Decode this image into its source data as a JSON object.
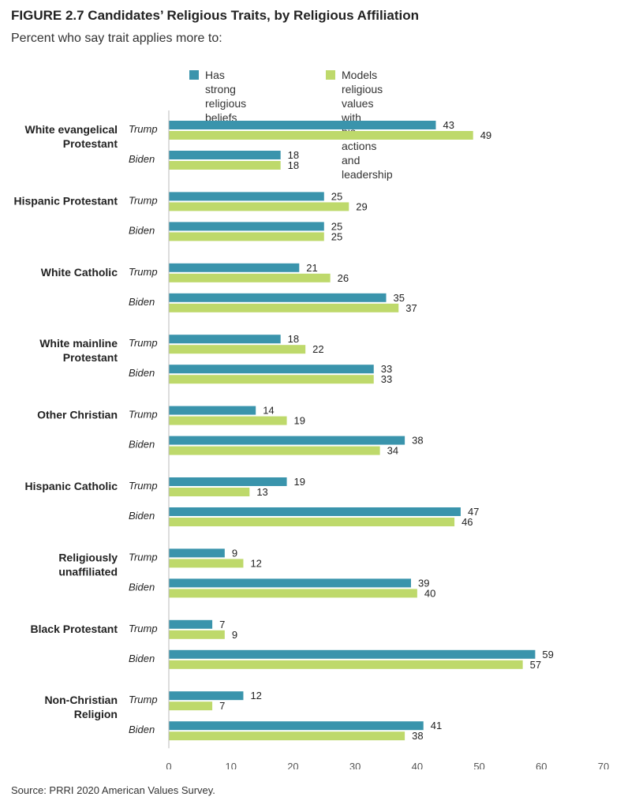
{
  "title": "FIGURE 2.7  Candidates’ Religious Traits, by Religious Affiliation",
  "subtitle": "Percent who say trait applies more to:",
  "source": "Source: PRRI 2020 American Values Survey.",
  "colors": {
    "series1": "#3a94ac",
    "series2": "#bed96b",
    "axis": "#bbbbbb",
    "text": "#222222",
    "tick": "#555555"
  },
  "chart_data": {
    "type": "bar",
    "orientation": "horizontal",
    "xlim": [
      0,
      70
    ],
    "ticks": [
      0,
      10,
      20,
      30,
      40,
      50,
      60,
      70
    ],
    "grid": false,
    "legend_position": "top",
    "series_names": [
      "Has strong\nreligious beliefs",
      "Models religious values with\nhis actions and leadership"
    ],
    "groups": [
      {
        "label": "White evangelical\nProtestant",
        "candidates": [
          {
            "name": "Trump",
            "values": [
              43,
              49
            ]
          },
          {
            "name": "Biden",
            "values": [
              18,
              18
            ]
          }
        ]
      },
      {
        "label": "Hispanic Protestant",
        "candidates": [
          {
            "name": "Trump",
            "values": [
              25,
              29
            ]
          },
          {
            "name": "Biden",
            "values": [
              25,
              25
            ]
          }
        ]
      },
      {
        "label": "White Catholic",
        "candidates": [
          {
            "name": "Trump",
            "values": [
              21,
              26
            ]
          },
          {
            "name": "Biden",
            "values": [
              35,
              37
            ]
          }
        ]
      },
      {
        "label": "White mainline\nProtestant",
        "candidates": [
          {
            "name": "Trump",
            "values": [
              18,
              22
            ]
          },
          {
            "name": "Biden",
            "values": [
              33,
              33
            ]
          }
        ]
      },
      {
        "label": "Other Christian",
        "candidates": [
          {
            "name": "Trump",
            "values": [
              14,
              19
            ]
          },
          {
            "name": "Biden",
            "values": [
              38,
              34
            ]
          }
        ]
      },
      {
        "label": "Hispanic Catholic",
        "candidates": [
          {
            "name": "Trump",
            "values": [
              19,
              13
            ]
          },
          {
            "name": "Biden",
            "values": [
              47,
              46
            ]
          }
        ]
      },
      {
        "label": "Religiously\nunaffiliated",
        "candidates": [
          {
            "name": "Trump",
            "values": [
              9,
              12
            ]
          },
          {
            "name": "Biden",
            "values": [
              39,
              40
            ]
          }
        ]
      },
      {
        "label": "Black Protestant",
        "candidates": [
          {
            "name": "Trump",
            "values": [
              7,
              9
            ]
          },
          {
            "name": "Biden",
            "values": [
              59,
              57
            ]
          }
        ]
      },
      {
        "label": "Non-Christian\nReligion",
        "candidates": [
          {
            "name": "Trump",
            "values": [
              12,
              7
            ]
          },
          {
            "name": "Biden",
            "values": [
              41,
              38
            ]
          }
        ]
      }
    ]
  }
}
